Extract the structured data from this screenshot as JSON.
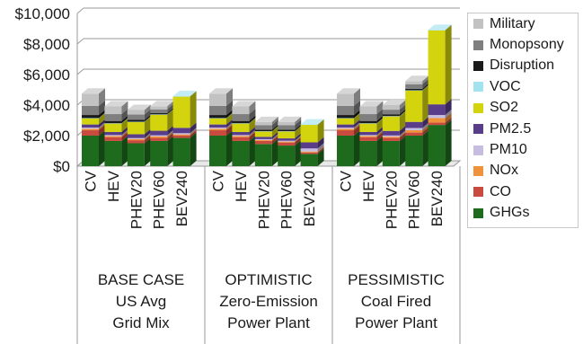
{
  "chart_data": {
    "type": "bar",
    "stacked": true,
    "style": "3d",
    "y_tick_labels": [
      "$0",
      "$2,000",
      "$4,000",
      "$6,000",
      "$8,000",
      "$10,000"
    ],
    "ylim": [
      0,
      10000
    ],
    "legend_position": "right",
    "series": [
      {
        "name": "GHGs",
        "color": "#1e6b1e"
      },
      {
        "name": "CO",
        "color": "#c94a3e"
      },
      {
        "name": "NOx",
        "color": "#f0923a"
      },
      {
        "name": "PM10",
        "color": "#c7bde0"
      },
      {
        "name": "PM2.5",
        "color": "#5a3d8a"
      },
      {
        "name": "SO2",
        "color": "#d4d40e"
      },
      {
        "name": "VOC",
        "color": "#a3e2f0"
      },
      {
        "name": "Disruption",
        "color": "#1a1a1a"
      },
      {
        "name": "Monopsony",
        "color": "#7f7f7f"
      },
      {
        "name": "Military",
        "color": "#c2c2c2"
      }
    ],
    "groups": [
      {
        "label_lines": [
          "BASE CASE",
          "US Avg",
          "Grid Mix"
        ],
        "bars": [
          {
            "category": "CV",
            "values": [
              2000,
              350,
              100,
              80,
              200,
              400,
              20,
              200,
              600,
              800
            ]
          },
          {
            "category": "HEV",
            "values": [
              1650,
              250,
              80,
              60,
              200,
              550,
              20,
              150,
              450,
              500
            ]
          },
          {
            "category": "PHEV20",
            "values": [
              1500,
              200,
              80,
              60,
              250,
              800,
              20,
              120,
              350,
              300
            ]
          },
          {
            "category": "PHEV60",
            "values": [
              1650,
              200,
              100,
              70,
              300,
              1050,
              20,
              80,
              250,
              200
            ]
          },
          {
            "category": "BEV240",
            "values": [
              1850,
              150,
              80,
              80,
              350,
              2050,
              20,
              0,
              0,
              0
            ]
          }
        ]
      },
      {
        "label_lines": [
          "OPTIMISTIC",
          "Zero-Emission",
          "Power Plant"
        ],
        "bars": [
          {
            "category": "CV",
            "values": [
              2000,
              350,
              100,
              80,
              200,
              400,
              20,
              200,
              600,
              800
            ]
          },
          {
            "category": "HEV",
            "values": [
              1650,
              250,
              80,
              60,
              200,
              550,
              20,
              150,
              450,
              500
            ]
          },
          {
            "category": "PHEV20",
            "values": [
              1450,
              200,
              60,
              60,
              150,
              350,
              20,
              100,
              300,
              200
            ]
          },
          {
            "category": "PHEV60",
            "values": [
              1350,
              200,
              60,
              60,
              150,
              450,
              20,
              100,
              300,
              200
            ]
          },
          {
            "category": "BEV240",
            "values": [
              800,
              100,
              60,
              200,
              400,
              1150,
              20,
              0,
              0,
              0
            ]
          }
        ]
      },
      {
        "label_lines": [
          "PESSIMISTIC",
          "Coal Fired",
          "Power Plant"
        ],
        "bars": [
          {
            "category": "CV",
            "values": [
              2000,
              350,
              100,
              80,
              200,
              400,
              20,
              200,
              600,
              800
            ]
          },
          {
            "category": "HEV",
            "values": [
              1650,
              250,
              80,
              60,
              200,
              550,
              20,
              150,
              450,
              500
            ]
          },
          {
            "category": "PHEV20",
            "values": [
              1650,
              200,
              80,
              80,
              300,
              950,
              20,
              120,
              300,
              300
            ]
          },
          {
            "category": "PHEV60",
            "values": [
              2000,
              200,
              150,
              150,
              400,
              2050,
              20,
              100,
              300,
              200
            ]
          },
          {
            "category": "BEV240",
            "values": [
              2700,
              150,
              300,
              200,
              700,
              4850,
              20,
              0,
              0,
              0
            ]
          }
        ]
      }
    ]
  }
}
